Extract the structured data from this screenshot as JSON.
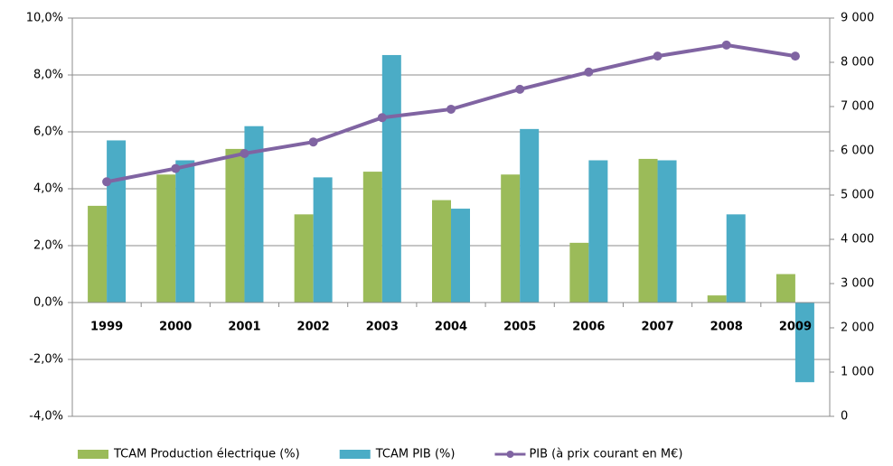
{
  "chart_data": {
    "type": "bar",
    "categories": [
      "1999",
      "2000",
      "2001",
      "2002",
      "2003",
      "2004",
      "2005",
      "2006",
      "2007",
      "2008",
      "2009"
    ],
    "series": [
      {
        "name": "TCAM Production électrique (%)",
        "color": "#9bbb59",
        "values": [
          3.4,
          4.5,
          5.4,
          3.1,
          4.6,
          3.6,
          4.5,
          2.1,
          5.05,
          0.25,
          1.0
        ]
      },
      {
        "name": "TCAM PIB (%)",
        "color": "#4bacc6",
        "values": [
          5.7,
          5.0,
          6.2,
          4.4,
          8.7,
          3.3,
          6.1,
          5.0,
          5.0,
          3.1,
          -2.8
        ]
      },
      {
        "name": "PIB (à prix courant en M€)",
        "color": "#8064a2",
        "type": "line",
        "axis": "y2",
        "values": [
          5300,
          5600,
          5940,
          6200,
          6750,
          6940,
          7390,
          7780,
          8140,
          8390,
          8140
        ]
      }
    ],
    "ylim": [
      -4,
      10
    ],
    "yticks": [
      {
        "value": -4,
        "label": "-4,0%"
      },
      {
        "value": -2,
        "label": "-2,0%"
      },
      {
        "value": 0,
        "label": "0,0%"
      },
      {
        "value": 2,
        "label": "2,0%"
      },
      {
        "value": 4,
        "label": "4,0%"
      },
      {
        "value": 6,
        "label": "6,0%"
      },
      {
        "value": 8,
        "label": "8,0%"
      },
      {
        "value": 10,
        "label": "10,0%"
      }
    ],
    "y2lim": [
      0,
      9000
    ],
    "y2ticks": [
      0,
      {
        "value": 1000,
        "label": "1 000"
      },
      {
        "value": 2000,
        "label": "2 000"
      },
      {
        "value": 3000,
        "label": "3 000"
      },
      {
        "value": 4000,
        "label": "4 000"
      },
      {
        "value": 5000,
        "label": "5 000"
      },
      {
        "value": 6000,
        "label": "6 000"
      },
      {
        "value": 7000,
        "label": "7 000"
      },
      {
        "value": 8000,
        "label": "8 000"
      },
      {
        "value": 9000,
        "label": "9 000"
      }
    ],
    "grid": true,
    "legend": "bottom"
  }
}
